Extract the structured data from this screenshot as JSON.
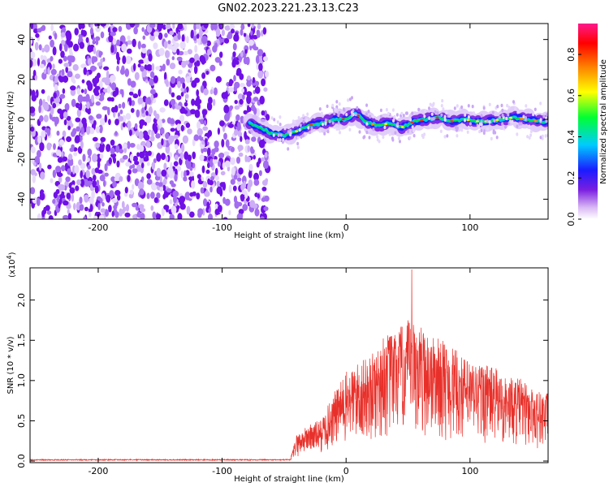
{
  "title": "GN02.2023.221.23.13.C23",
  "chart_data": [
    {
      "type": "heatmap",
      "xlabel": "Height of straight line (km)",
      "ylabel": "Frequency (Hz)",
      "xlim": [
        -255,
        163
      ],
      "ylim": [
        -50,
        48
      ],
      "x_ticks": [
        -200,
        -100,
        0,
        100
      ],
      "y_ticks": [
        -40,
        -20,
        0,
        20,
        40
      ],
      "noise_region_end_km": -63,
      "colorbar": {
        "label": "Normalized spectral amplitude",
        "ticks": [
          0.0,
          0.2,
          0.4,
          0.6,
          0.8
        ],
        "range": [
          0,
          0.95
        ],
        "colormap": "rainbow (white-purple-blue-cyan-green-yellow-orange-red-pink)"
      },
      "ridge": {
        "x": [
          -78,
          -70,
          -60,
          -50,
          -40,
          -30,
          -20,
          -10,
          0,
          8,
          15,
          25,
          35,
          45,
          55,
          65,
          75,
          85,
          95,
          105,
          115,
          125,
          135,
          145,
          155,
          163
        ],
        "y": [
          -2,
          -4,
          -7,
          -8,
          -6,
          -3,
          -2,
          0,
          0,
          3,
          -1,
          -3,
          -2,
          -4,
          -1,
          0,
          1,
          -1,
          0,
          -1,
          -1,
          0,
          1,
          0,
          -1,
          -1
        ]
      }
    },
    {
      "type": "line",
      "xlabel": "Height of straight line (km)",
      "ylabel": "SNR (10 * v/v)",
      "y_multiplier": "(x10",
      "y_multiplier_exp": "4",
      "xlim": [
        -255,
        163
      ],
      "ylim": [
        -0.02,
        2.4
      ],
      "x_ticks": [
        -200,
        -100,
        0,
        100
      ],
      "y_ticks": [
        0.0,
        0.5,
        1.0,
        1.5,
        2.0
      ],
      "series_color": "#e8302a",
      "envelope": {
        "x": [
          -255,
          -45,
          -40,
          -30,
          -20,
          -10,
          0,
          10,
          20,
          30,
          40,
          50,
          60,
          70,
          80,
          90,
          100,
          110,
          120,
          130,
          140,
          150,
          163
        ],
        "y": [
          0.015,
          0.015,
          0.25,
          0.35,
          0.4,
          0.65,
          0.85,
          0.95,
          1.0,
          1.2,
          1.25,
          1.35,
          1.3,
          1.2,
          1.15,
          1.05,
          0.95,
          0.95,
          0.9,
          0.8,
          0.8,
          0.7,
          0.65
        ]
      },
      "peak": {
        "x": 53,
        "y": 2.38
      }
    }
  ]
}
